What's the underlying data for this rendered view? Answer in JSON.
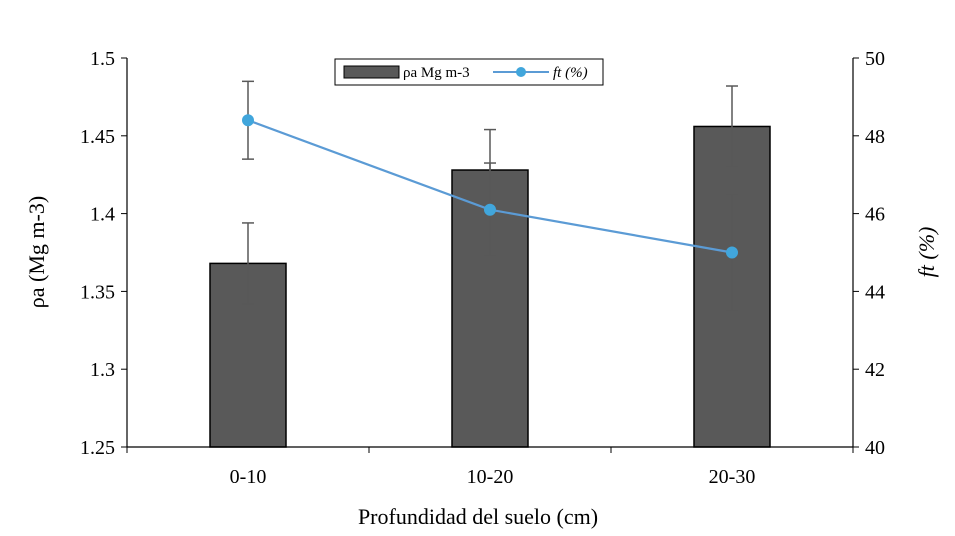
{
  "chart_data": {
    "type": "bar",
    "categories": [
      "0-10",
      "10-20",
      "20-30"
    ],
    "xlabel": "Profundidad del suelo (cm)",
    "ylabel": "ρa (Mg m-3)",
    "y2label": "ft (%)",
    "ylim": [
      1.25,
      1.5
    ],
    "yticks": [
      "1.25",
      "1.3",
      "1.35",
      "1.4",
      "1.45",
      "1.5"
    ],
    "y2lim": [
      40,
      50
    ],
    "y2ticks": [
      "40",
      "42",
      "44",
      "46",
      "48",
      "50"
    ],
    "legend_position": "top-center",
    "grid": false,
    "series": [
      {
        "name": "ρa Mg m-3",
        "type": "bar",
        "axis": "left",
        "values": [
          1.368,
          1.428,
          1.456
        ],
        "error": [
          0.026,
          0.026,
          0.026
        ],
        "color": "#595959"
      },
      {
        "name": "ft (%)",
        "type": "line",
        "axis": "right",
        "values": [
          48.4,
          46.1,
          45.0
        ],
        "error": [
          1.0,
          1.2,
          1.5
        ],
        "color": "#5B9BD5",
        "marker_color": "#41A6DC"
      }
    ]
  }
}
